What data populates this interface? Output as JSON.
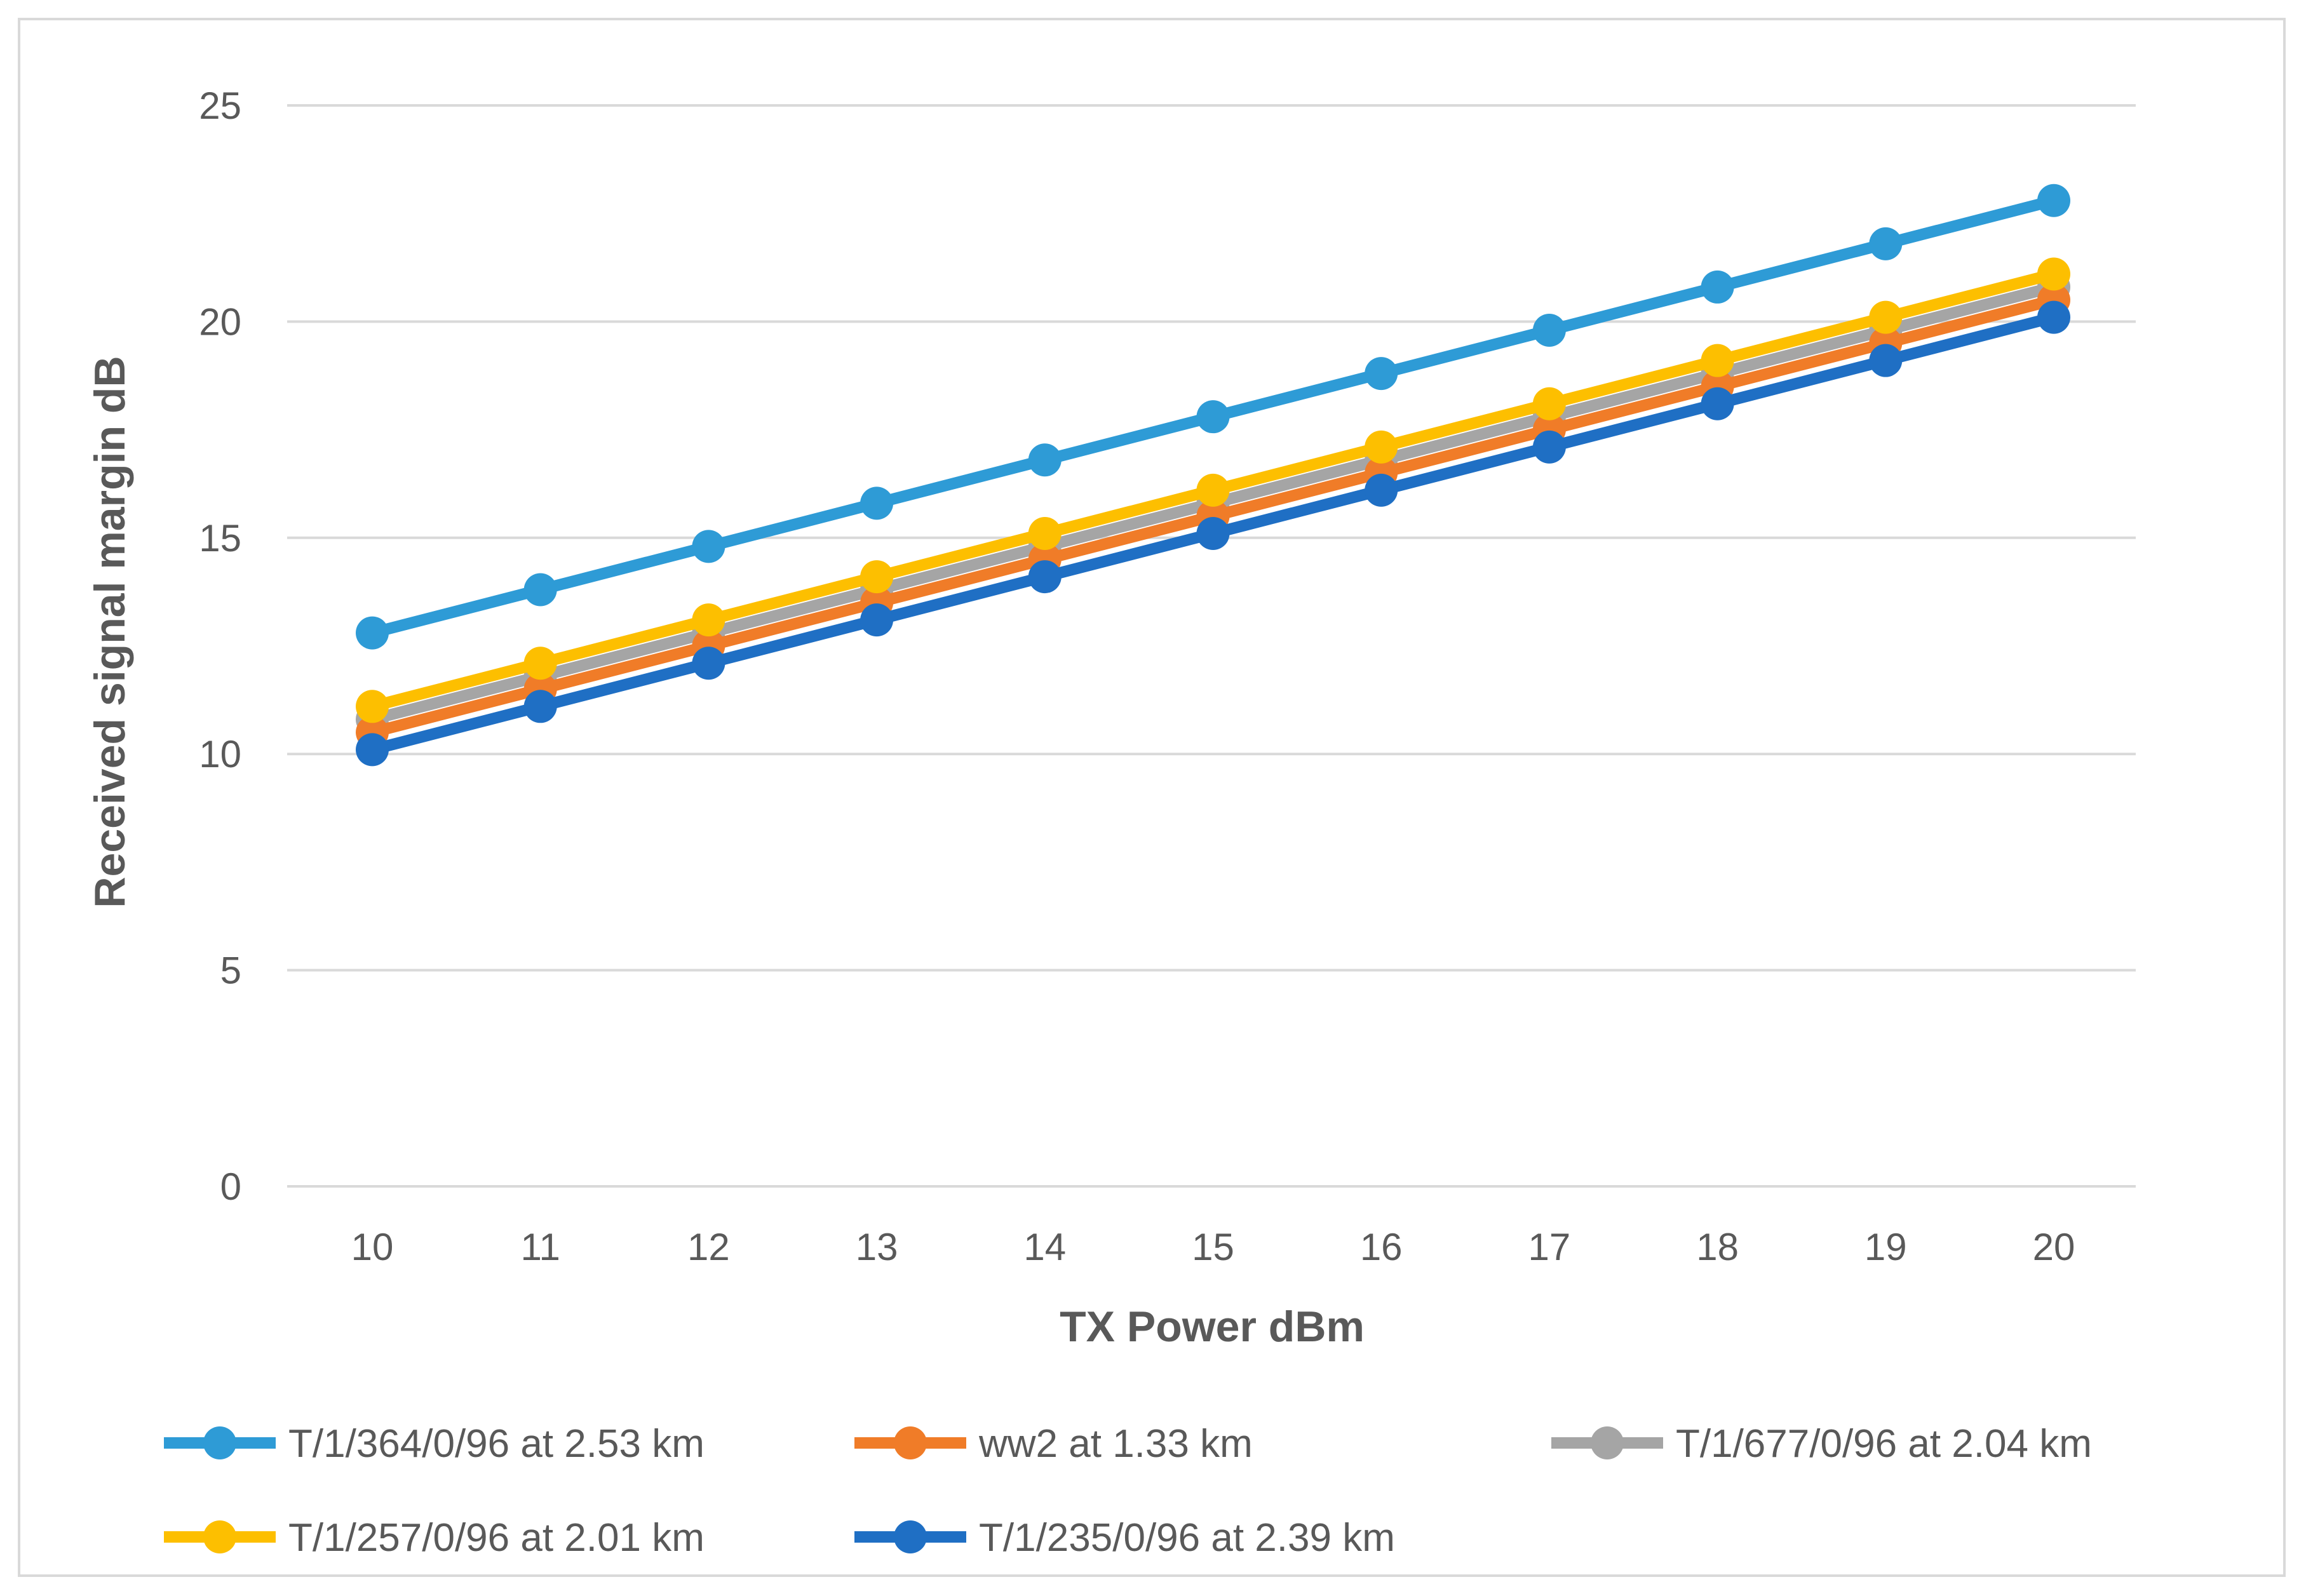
{
  "chart_data": {
    "type": "line",
    "title": "",
    "xlabel": "TX Power dBm",
    "ylabel": "Received signal margin dB",
    "x": [
      10,
      11,
      12,
      13,
      14,
      15,
      16,
      17,
      18,
      19,
      20
    ],
    "ylim": [
      0,
      25
    ],
    "yticks": [
      0,
      5,
      10,
      15,
      20,
      25
    ],
    "grid": true,
    "legend_position": "bottom",
    "series": [
      {
        "name": "T/1/364/0/96 at 2.53 km",
        "color": "#2e9bd6",
        "values": [
          12.8,
          13.8,
          14.8,
          15.8,
          16.8,
          17.8,
          18.8,
          19.8,
          20.8,
          21.8,
          22.8
        ]
      },
      {
        "name": "ww2 at 1.33 km",
        "color": "#f07c28",
        "values": [
          10.5,
          11.5,
          12.5,
          13.5,
          14.5,
          15.5,
          16.5,
          17.5,
          18.5,
          19.5,
          20.5
        ]
      },
      {
        "name": "T/1/677/0/96 at 2.04 km",
        "color": "#a5a5a5",
        "values": [
          10.8,
          11.8,
          12.8,
          13.8,
          14.8,
          15.8,
          16.8,
          17.8,
          18.8,
          19.8,
          20.8
        ]
      },
      {
        "name": "T/1/257/0/96 at 2.01 km",
        "color": "#fdbf00",
        "values": [
          11.1,
          12.1,
          13.1,
          14.1,
          15.1,
          16.1,
          17.1,
          18.1,
          19.1,
          20.1,
          21.1
        ]
      },
      {
        "name": "T/1/235/0/96 at 2.39 km",
        "color": "#1f6fc4",
        "values": [
          10.1,
          11.1,
          12.1,
          13.1,
          14.1,
          15.1,
          16.1,
          17.1,
          18.1,
          19.1,
          20.1
        ]
      }
    ]
  }
}
